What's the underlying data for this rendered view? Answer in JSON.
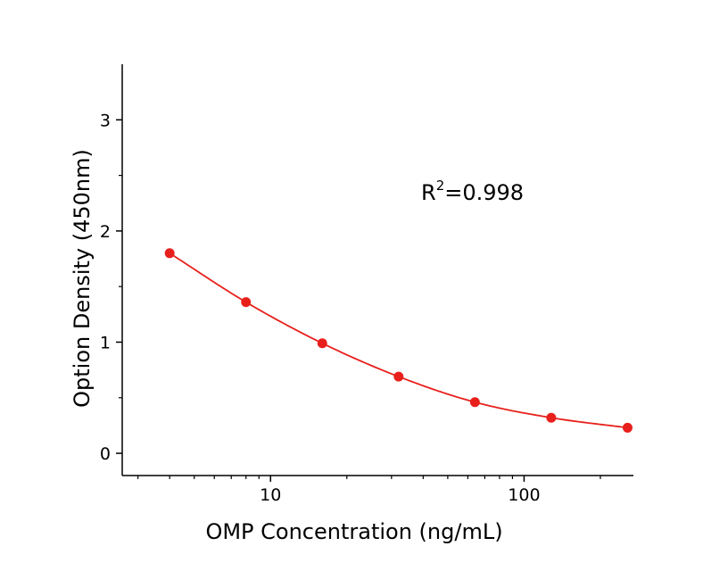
{
  "chart_data": {
    "type": "line",
    "xlabel": "OMP Concentration  (ng/mL)",
    "ylabel": "Option Density  (450nm)",
    "xscale": "log",
    "xlim": [
      2.6,
      270
    ],
    "ylim": [
      -0.2,
      3.5
    ],
    "xticks": [
      {
        "value": 10,
        "label": "10"
      },
      {
        "value": 100,
        "label": "100"
      }
    ],
    "xminor": [
      3,
      4,
      5,
      6,
      7,
      8,
      9,
      20,
      30,
      40,
      50,
      60,
      70,
      80,
      90,
      200
    ],
    "yticks": [
      {
        "value": 0,
        "label": "0"
      },
      {
        "value": 1,
        "label": "1"
      },
      {
        "value": 2,
        "label": "2"
      },
      {
        "value": 3,
        "label": "3"
      }
    ],
    "grid": false,
    "series": [
      {
        "color": "#e8201c",
        "points": [
          {
            "x": 4,
            "y": 1.8
          },
          {
            "x": 8,
            "y": 1.36
          },
          {
            "x": 16,
            "y": 0.99
          },
          {
            "x": 32,
            "y": 0.69
          },
          {
            "x": 64,
            "y": 0.46
          },
          {
            "x": 128,
            "y": 0.32
          },
          {
            "x": 256,
            "y": 0.23
          }
        ]
      }
    ],
    "annotation": {
      "base": "R",
      "superscript": "2",
      "rest": "=0.998"
    }
  }
}
